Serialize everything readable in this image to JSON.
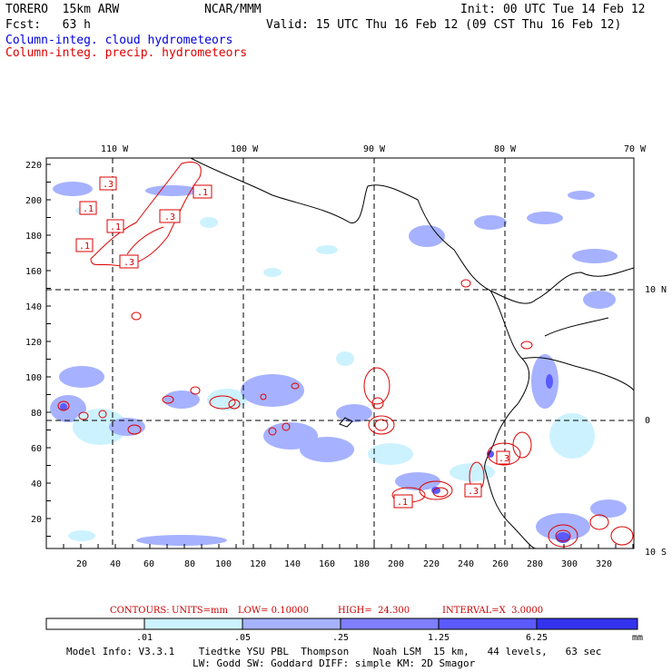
{
  "header": {
    "model": "TORERO  15km ARW",
    "org": "NCAR/MMM",
    "init": "Init: 00 UTC Tue 14 Feb 12",
    "fcst": "Fcst:   63 h",
    "valid": "Valid: 15 UTC Thu 16 Feb 12 (09 CST Thu 16 Feb 12)",
    "field1": "Column-integ. cloud hydrometeors",
    "field2": "Column-integ. precip. hydrometeors"
  },
  "colors": {
    "field1": "#0000dd",
    "field2": "#dd0000",
    "shade1": "#ccf2ff",
    "shade2": "#a6b2ff",
    "shade3": "#7f7fff",
    "shade4": "#5a5aff",
    "shade5": "#3333ee",
    "contour": "#dd0000"
  },
  "map": {
    "lon_labels": [
      "110 W",
      "100 W",
      "90 W",
      "80 W",
      "70 W"
    ],
    "lat_labels": [
      "10 N",
      "0",
      "10 S"
    ],
    "y_ticks": [
      "220",
      "200",
      "180",
      "160",
      "140",
      "120",
      "100",
      "80",
      "60",
      "40",
      "20"
    ],
    "x_ticks": [
      "20",
      "40",
      "60",
      "80",
      "100",
      "120",
      "140",
      "160",
      "180",
      "200",
      "220",
      "240",
      "260",
      "280",
      "300",
      "320"
    ],
    "contour_labels": [
      ".3",
      ".1",
      ".1",
      ".1",
      ".3",
      ".1",
      ".3",
      ".1",
      ".3",
      ".3"
    ]
  },
  "legend": {
    "contours_title": "CONTOURS:",
    "units": "UNITS=mm",
    "low": "LOW= 0.10000",
    "high": "HIGH=  24.300",
    "interval": "INTERVAL=X  3.0000",
    "bar_labels": [
      ".01",
      ".05",
      ".25",
      "1.25",
      "6.25"
    ],
    "unit": "mm"
  },
  "footer": {
    "line1": "Model Info: V3.3.1    Tiedtke YSU PBL  Thompson    Noah LSM  15 km,   44 levels,   63 sec",
    "line2": "LW: Godd SW: Goddard DIFF: simple KM: 2D Smagor"
  }
}
